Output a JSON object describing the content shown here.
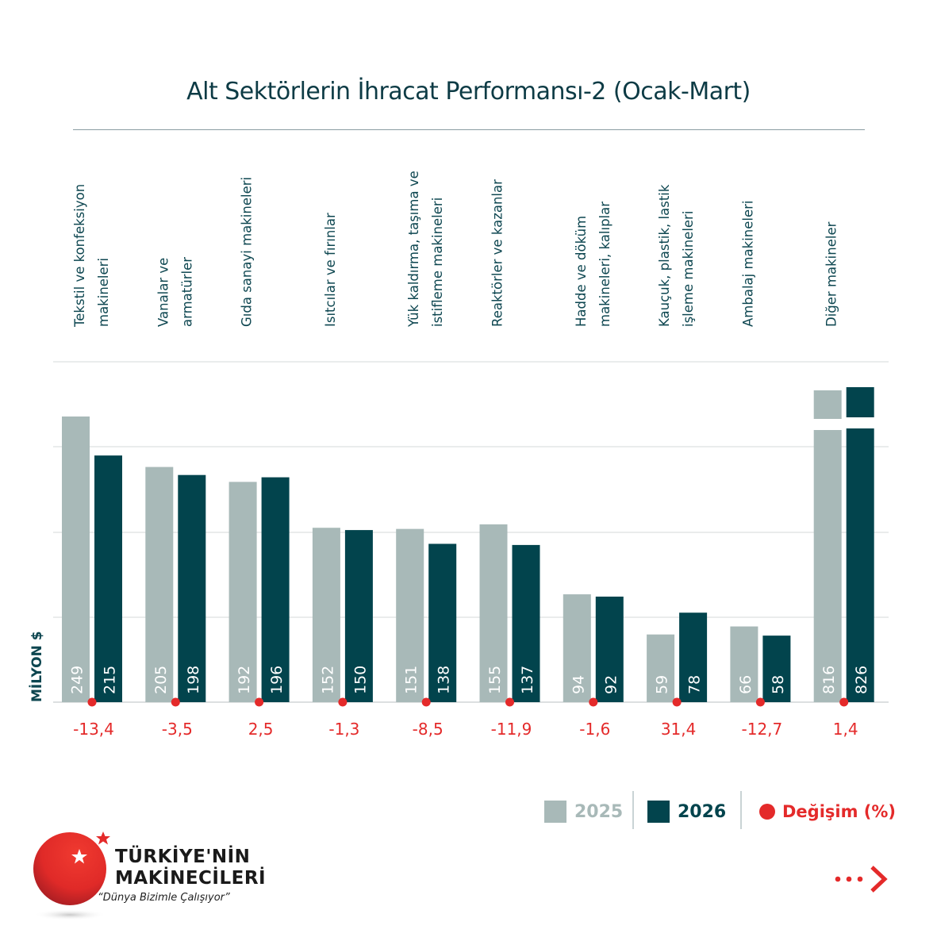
{
  "chart_data": {
    "type": "bar",
    "title": "Alt Sektörlerin İhracat Performansı-2 (Ocak-Mart)",
    "ylabel": "MİLYON $",
    "xlabel": "",
    "ylim": [
      0,
      300
    ],
    "grid": true,
    "broken_axis_categories": [
      "Diğer makineler"
    ],
    "categories": [
      [
        "Tekstil ve konfeksiyon",
        "makineleri"
      ],
      [
        "Vanalar ve",
        "armatürler"
      ],
      [
        "Gıda sanayi makineleri"
      ],
      [
        "Isıtcılar ve fırınlar"
      ],
      [
        "Yük kaldırma, taşıma ve",
        "istifleme makineleri"
      ],
      [
        "Reaktörler ve kazanlar"
      ],
      [
        "Hadde ve döküm",
        "makineleri, kalıplar"
      ],
      [
        "Kauçuk, plastik, lastik",
        "işleme makineleri"
      ],
      [
        "Ambalaj makineleri"
      ],
      [
        "Diğer makineler"
      ]
    ],
    "series": [
      {
        "name": "2025",
        "color": "#a8b9b8",
        "label_color": "#ffffff",
        "values": [
          249,
          205,
          192,
          152,
          151,
          155,
          94,
          59,
          66,
          816
        ]
      },
      {
        "name": "2026",
        "color": "#02444d",
        "label_color": "#ffffff",
        "values": [
          215,
          198,
          196,
          150,
          138,
          137,
          92,
          78,
          58,
          826
        ]
      }
    ],
    "change_pct": {
      "name": "Değişim (%)",
      "color": "#e42a2a",
      "values": [
        "-13,4",
        "-3,5",
        "2,5",
        "-1,3",
        "-8,5",
        "-11,9",
        "-1,6",
        "31,4",
        "-12,7",
        "1,4"
      ]
    },
    "legend_position": "bottom-right"
  },
  "legend": {
    "items": [
      {
        "label": "2025",
        "color": "#a8b9b8"
      },
      {
        "label": "2026",
        "color": "#02444d"
      },
      {
        "label": "Değişim (%)",
        "color": "#e42a2a"
      }
    ]
  },
  "logo": {
    "line1": "TÜRKİYE'NİN",
    "line2": "MAKİNECİLERİ",
    "slogan": "“Dünya Bizimle Çalışıyor”",
    "icon": "red-sphere-star-icon"
  },
  "navigation": {
    "next_icon": "dots-chevron-right-icon"
  }
}
